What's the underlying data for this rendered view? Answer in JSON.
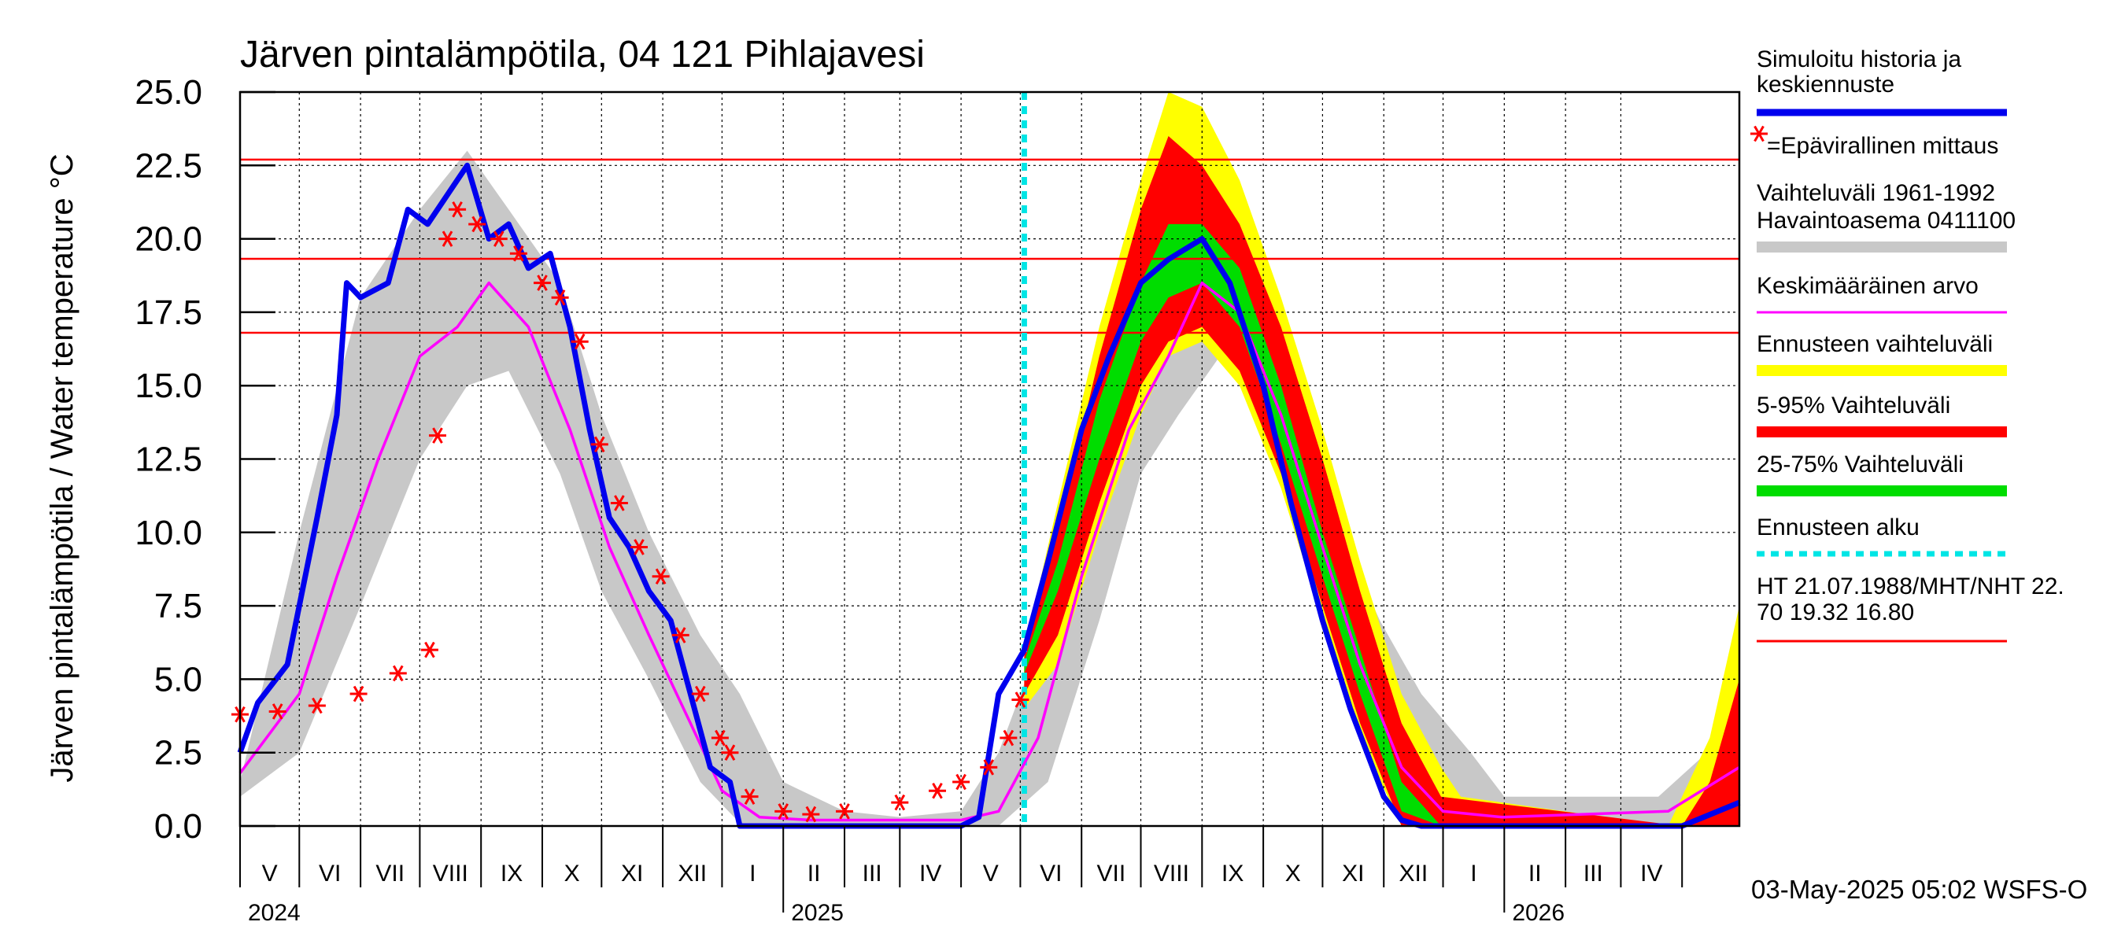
{
  "chart_data": {
    "type": "line",
    "title": "Järven pintalämpötila, 04 121 Pihlajavesi",
    "ylabel": "Järven pintalämpötila / Water temperature °C",
    "ylim": [
      0,
      25
    ],
    "y_ticks": [
      "0.0",
      "2.5",
      "5.0",
      "7.5",
      "10.0",
      "12.5",
      "15.0",
      "17.5",
      "20.0",
      "22.5",
      "25.0"
    ],
    "x_start": "2024-04-01",
    "x_end": "2026-04-30",
    "month_labels": [
      "V",
      "VI",
      "VII",
      "VIII",
      "IX",
      "X",
      "XI",
      "XII",
      "I",
      "II",
      "III",
      "IV",
      "V",
      "VI",
      "VII",
      "VIII",
      "IX",
      "X",
      "XI",
      "XII",
      "I",
      "II",
      "III",
      "IV"
    ],
    "year_labels": [
      {
        "label": "2024",
        "date": "2024-04-01"
      },
      {
        "label": "2025",
        "date": "2025-01-01"
      },
      {
        "label": "2026",
        "date": "2026-01-01"
      }
    ],
    "forecast_start": "2025-05-03",
    "reference_lines": [
      {
        "name": "HT",
        "value": 22.7
      },
      {
        "name": "MHT",
        "value": 19.32
      },
      {
        "name": "NHT",
        "value": 16.8
      }
    ],
    "legend": [
      {
        "label": "Simuloitu historia ja keskiennuste",
        "color": "#0000ee",
        "kind": "line"
      },
      {
        "label": "=Epävirallinen mittaus",
        "color": "#ff0000",
        "kind": "star"
      },
      {
        "label": "Vaihteluväli 1961-1992 Havaintoasema 0411100",
        "color": "#c8c8c8",
        "kind": "band"
      },
      {
        "label": "Keskimääräinen arvo",
        "color": "#ff00ff",
        "kind": "line"
      },
      {
        "label": "Ennusteen vaihteluväli",
        "color": "#ffff00",
        "kind": "band"
      },
      {
        "label": "5-95% Vaihteluväli",
        "color": "#ff0000",
        "kind": "band"
      },
      {
        "label": "25-75% Vaihteluväli",
        "color": "#00dd00",
        "kind": "band"
      },
      {
        "label": "Ennusteen alku",
        "color": "#00e5e5",
        "kind": "dashed"
      },
      {
        "label": "HT 21.07.1988/MHT/NHT 22.70 19.32 16.80",
        "color": "#ff0000",
        "kind": "line"
      }
    ],
    "series": [
      {
        "name": "Simuloitu historia ja keskiennuste",
        "x": [
          "2024-04-01",
          "2024-04-10",
          "2024-04-25",
          "2024-05-10",
          "2024-05-20",
          "2024-05-25",
          "2024-06-01",
          "2024-06-15",
          "2024-06-25",
          "2024-07-05",
          "2024-07-15",
          "2024-07-25",
          "2024-08-05",
          "2024-08-15",
          "2024-08-25",
          "2024-09-05",
          "2024-09-15",
          "2024-09-25",
          "2024-10-05",
          "2024-10-15",
          "2024-10-25",
          "2024-11-05",
          "2024-11-15",
          "2024-11-25",
          "2024-12-05",
          "2024-12-10",
          "2024-12-20",
          "2025-01-01",
          "2025-02-01",
          "2025-03-01",
          "2025-04-01",
          "2025-04-10",
          "2025-04-20",
          "2025-05-03",
          "2025-05-15",
          "2025-06-01",
          "2025-06-15",
          "2025-07-01",
          "2025-07-15",
          "2025-08-01",
          "2025-08-15",
          "2025-09-01",
          "2025-09-15",
          "2025-10-01",
          "2025-10-15",
          "2025-11-01",
          "2025-11-10",
          "2025-11-20",
          "2025-12-01",
          "2026-01-01",
          "2026-02-01",
          "2026-03-01",
          "2026-04-01",
          "2026-04-30"
        ],
        "y": [
          2.5,
          4.2,
          5.5,
          10.5,
          14.0,
          18.5,
          18.0,
          18.5,
          21.0,
          20.5,
          21.5,
          22.5,
          20.0,
          20.5,
          19.0,
          19.5,
          17.0,
          13.5,
          10.5,
          9.5,
          8.0,
          7.0,
          4.5,
          2.0,
          1.5,
          0.0,
          0.0,
          0.0,
          0.0,
          0.0,
          0.0,
          0.3,
          4.5,
          6.0,
          9.0,
          13.5,
          16.0,
          18.5,
          19.3,
          20.0,
          18.5,
          15.0,
          11.0,
          7.0,
          4.0,
          1.0,
          0.2,
          0.0,
          0.0,
          0.0,
          0.0,
          0.0,
          0.0,
          0.8
        ]
      },
      {
        "name": "Keskimääräinen arvo",
        "x": [
          "2024-04-01",
          "2024-05-01",
          "2024-05-20",
          "2024-06-10",
          "2024-07-01",
          "2024-07-20",
          "2024-08-05",
          "2024-08-25",
          "2024-09-15",
          "2024-10-05",
          "2024-10-25",
          "2024-11-15",
          "2024-12-01",
          "2024-12-20",
          "2025-01-15",
          "2025-03-01",
          "2025-04-01",
          "2025-04-20",
          "2025-05-10",
          "2025-06-01",
          "2025-06-25",
          "2025-07-15",
          "2025-08-01",
          "2025-08-20",
          "2025-09-10",
          "2025-10-01",
          "2025-10-20",
          "2025-11-10",
          "2025-12-01",
          "2025-12-31",
          "2026-03-25",
          "2026-04-30"
        ],
        "y": [
          1.8,
          4.5,
          8.5,
          12.5,
          16.0,
          17.0,
          18.5,
          17.0,
          13.5,
          9.5,
          6.5,
          3.5,
          1.2,
          0.3,
          0.2,
          0.2,
          0.2,
          0.5,
          3.0,
          8.5,
          13.5,
          16.0,
          18.5,
          17.5,
          14.0,
          9.5,
          5.5,
          2.0,
          0.5,
          0.3,
          0.5,
          2.0
        ]
      },
      {
        "name": "Epävirallinen mittaus",
        "x": [
          "2024-04-01",
          "2024-04-20",
          "2024-05-10",
          "2024-05-31",
          "2024-06-20",
          "2024-07-06",
          "2024-07-10",
          "2024-07-15",
          "2024-07-20",
          "2024-07-30",
          "2024-08-10",
          "2024-08-20",
          "2024-09-01",
          "2024-09-10",
          "2024-09-20",
          "2024-09-30",
          "2024-10-10",
          "2024-10-20",
          "2024-10-31",
          "2024-11-10",
          "2024-11-20",
          "2024-11-30",
          "2024-12-05",
          "2024-12-15",
          "2025-01-01",
          "2025-01-15",
          "2025-02-01",
          "2025-03-01",
          "2025-03-20",
          "2025-04-01",
          "2025-04-15",
          "2025-04-25",
          "2025-05-01"
        ],
        "y": [
          3.8,
          3.9,
          4.1,
          4.5,
          5.2,
          6.0,
          13.3,
          20.0,
          21.0,
          20.5,
          20.0,
          19.5,
          18.5,
          18.0,
          16.5,
          13.0,
          11.0,
          9.5,
          8.5,
          6.5,
          4.5,
          3.0,
          2.5,
          1.0,
          0.5,
          0.4,
          0.5,
          0.8,
          1.2,
          1.5,
          2.0,
          3.0,
          4.3
        ]
      }
    ],
    "bands": [
      {
        "name": "Vaihteluväli 1961-1992",
        "x": [
          "2024-04-01",
          "2024-05-01",
          "2024-06-01",
          "2024-07-01",
          "2024-07-25",
          "2024-08-15",
          "2024-09-10",
          "2024-10-01",
          "2024-10-25",
          "2024-11-20",
          "2024-12-10",
          "2025-01-01",
          "2025-02-01",
          "2025-03-01",
          "2025-04-01",
          "2025-04-20",
          "2025-05-15",
          "2025-06-10",
          "2025-07-01",
          "2025-07-20",
          "2025-08-10",
          "2025-08-30",
          "2025-09-20",
          "2025-10-10",
          "2025-10-30",
          "2025-11-20",
          "2025-12-15",
          "2026-01-01",
          "2026-03-20",
          "2026-04-30"
        ],
        "low": [
          1.0,
          2.5,
          7.5,
          12.5,
          15.0,
          15.5,
          12.0,
          8.0,
          5.0,
          1.5,
          0.1,
          0.0,
          0.0,
          0.0,
          0.0,
          0.0,
          1.5,
          7.0,
          12.0,
          14.0,
          16.0,
          15.0,
          12.0,
          8.5,
          5.0,
          2.0,
          0.3,
          0.0,
          0.0,
          0.0
        ],
        "high": [
          1.5,
          10.0,
          18.0,
          21.0,
          23.0,
          21.0,
          18.5,
          14.0,
          10.0,
          6.5,
          4.5,
          1.5,
          0.5,
          0.3,
          0.5,
          2.5,
          7.0,
          14.0,
          19.0,
          22.0,
          21.0,
          18.0,
          14.0,
          10.0,
          7.0,
          4.5,
          2.5,
          1.0,
          1.0,
          3.5
        ]
      },
      {
        "name": "Ennusteen vaihteluväli",
        "x": [
          "2025-05-03",
          "2025-05-20",
          "2025-06-10",
          "2025-07-01",
          "2025-07-15",
          "2025-08-01",
          "2025-08-20",
          "2025-09-10",
          "2025-10-01",
          "2025-10-20",
          "2025-11-10",
          "2025-11-30",
          "2025-12-10",
          "2026-03-25",
          "2026-04-15",
          "2026-04-30"
        ],
        "low": [
          4.0,
          5.5,
          10.0,
          14.0,
          16.0,
          16.5,
          15.0,
          11.5,
          7.0,
          3.0,
          0.0,
          0.0,
          0.0,
          0.0,
          0.0,
          0.0
        ],
        "high": [
          6.0,
          11.0,
          17.0,
          22.0,
          25.0,
          24.5,
          22.0,
          18.0,
          13.5,
          9.0,
          4.5,
          2.0,
          1.0,
          0.0,
          3.0,
          7.5
        ]
      },
      {
        "name": "5-95% Vaihteluväli",
        "x": [
          "2025-05-03",
          "2025-05-20",
          "2025-06-10",
          "2025-07-01",
          "2025-07-15",
          "2025-08-01",
          "2025-08-20",
          "2025-09-10",
          "2025-10-01",
          "2025-10-20",
          "2025-11-10",
          "2025-11-30",
          "2026-04-01",
          "2026-04-15",
          "2026-04-30"
        ],
        "low": [
          4.5,
          6.5,
          11.0,
          15.0,
          16.5,
          17.0,
          15.5,
          12.0,
          7.5,
          3.5,
          0.0,
          0.0,
          0.0,
          0.0,
          0.0
        ],
        "high": [
          5.8,
          10.0,
          16.0,
          21.0,
          23.5,
          22.5,
          20.5,
          17.0,
          12.5,
          8.0,
          3.5,
          1.0,
          0.0,
          1.5,
          5.0
        ]
      },
      {
        "name": "25-75% Vaihteluväli",
        "x": [
          "2025-05-03",
          "2025-05-20",
          "2025-06-10",
          "2025-07-01",
          "2025-07-15",
          "2025-08-01",
          "2025-08-20",
          "2025-09-10",
          "2025-10-01",
          "2025-10-20",
          "2025-11-10",
          "2025-11-30"
        ],
        "low": [
          5.2,
          8.0,
          12.5,
          16.5,
          18.0,
          18.5,
          17.0,
          13.0,
          8.5,
          4.5,
          0.5,
          0.0
        ],
        "high": [
          5.6,
          9.0,
          14.5,
          18.5,
          20.5,
          20.5,
          19.0,
          15.0,
          10.0,
          6.0,
          1.5,
          0.0
        ]
      }
    ],
    "footer": "03-May-2025 05:02 WSFS-O"
  }
}
